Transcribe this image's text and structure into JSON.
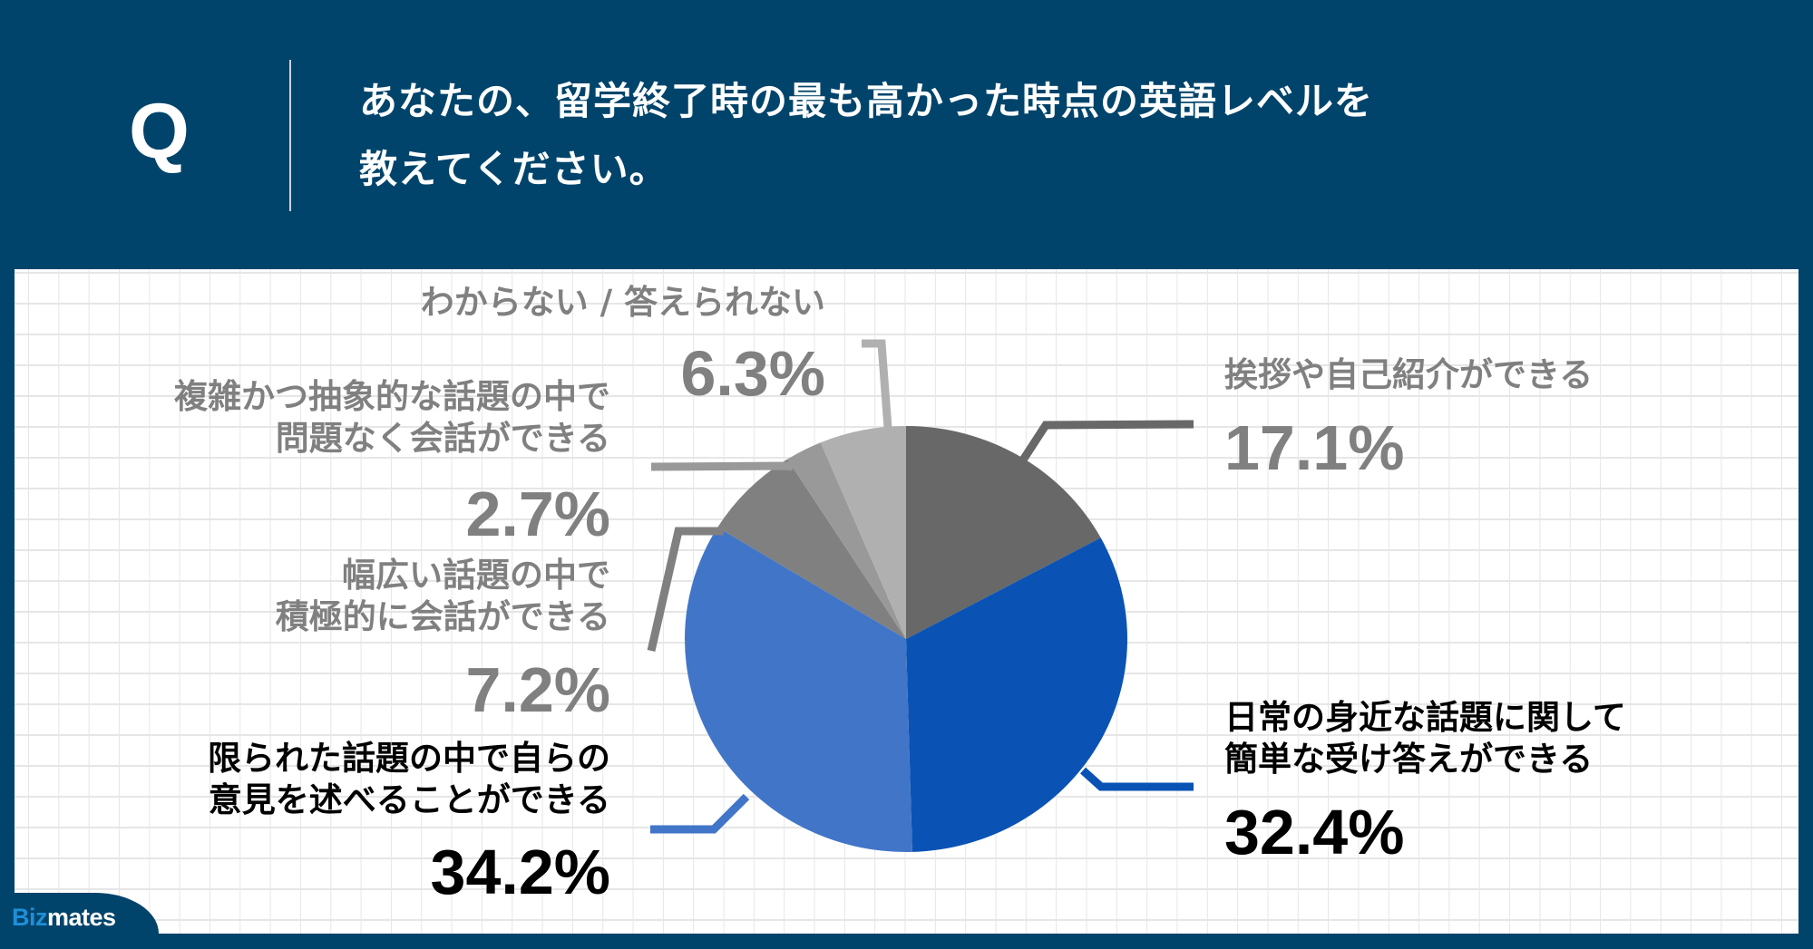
{
  "header": {
    "q_mark": "Q",
    "question_lines": [
      "あなたの、留学終了時の最も高かった時点の英語レベルを",
      "教えてください。"
    ]
  },
  "labels": {
    "dont_know": {
      "text": "わからない / 答えられない",
      "pct": "6.3%"
    },
    "complex": {
      "lines": [
        "複雑かつ抽象的な話題の中で",
        "問題なく会話ができる"
      ],
      "pct": "2.7%"
    },
    "wide": {
      "lines": [
        "幅広い話題の中で",
        "積極的に会話ができる"
      ],
      "pct": "7.2%"
    },
    "limited": {
      "lines": [
        "限られた話題の中で自らの",
        "意見を述べることができる"
      ],
      "pct": "34.2%"
    },
    "greeting": {
      "text": "挨拶や自己紹介ができる",
      "pct": "17.1%"
    },
    "daily": {
      "lines": [
        "日常の身近な話題に関して",
        "簡単な受け答えができる"
      ],
      "pct": "32.4%"
    }
  },
  "logo": {
    "biz": "Biz",
    "mates": "mates"
  },
  "colors": {
    "header_bg": "#01446b",
    "greeting": "#686868",
    "daily": "#0a53b5",
    "limited": "#4175c7",
    "wide": "#808080",
    "complex": "#999999",
    "dont_know": "#b0b0b0",
    "logo_biz": "#1e8fd8"
  },
  "chart_data": {
    "type": "pie",
    "title": "あなたの、留学終了時の最も高かった時点の英語レベルを教えてください。",
    "start_angle": "12 o'clock, clockwise",
    "categories": [
      "挨拶や自己紹介ができる",
      "日常の身近な話題に関して簡単な受け答えができる",
      "限られた話題の中で自らの意見を述べることができる",
      "幅広い話題の中で積極的に会話ができる",
      "複雑かつ抽象的な話題の中で問題なく会話ができる",
      "わからない / 答えられない"
    ],
    "values": [
      17.1,
      32.4,
      34.2,
      7.2,
      2.7,
      6.3
    ],
    "unit": "%",
    "colors": [
      "#686868",
      "#0a53b5",
      "#4175c7",
      "#808080",
      "#999999",
      "#b0b0b0"
    ],
    "legend": "none (direct labels with leader lines)",
    "grid": true
  }
}
